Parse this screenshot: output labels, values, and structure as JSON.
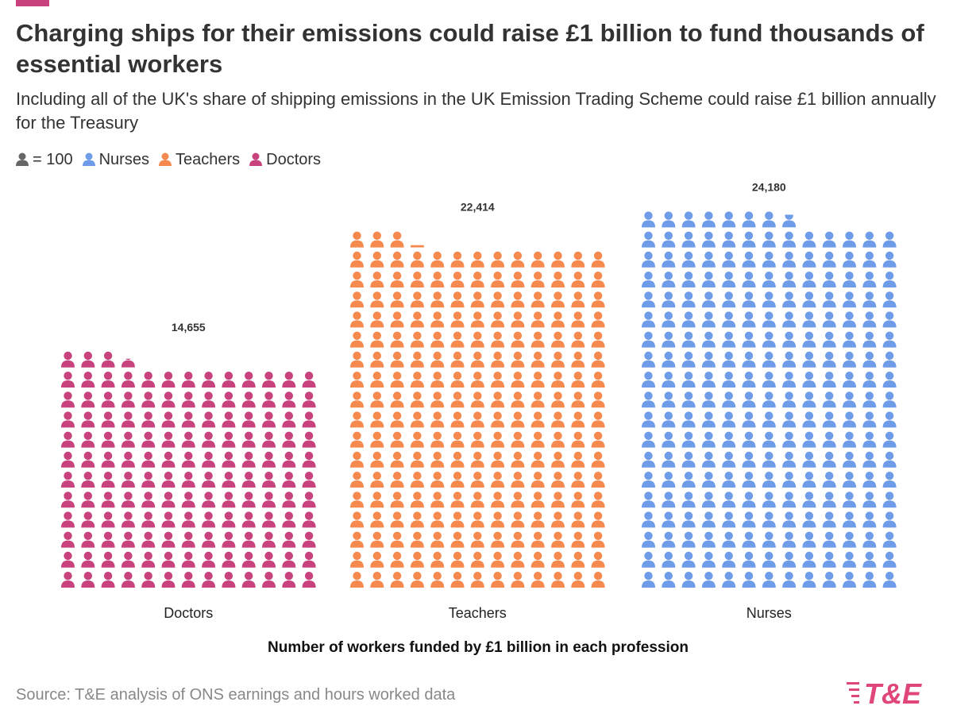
{
  "header": {
    "title": "Charging ships for their emissions could raise £1 billion to fund thousands of essential workers",
    "subtitle": "Including all of the UK's share of shipping emissions in the UK Emission Trading Scheme could raise £1 billion annually for the Treasury"
  },
  "legend": {
    "unit_label": "= 100",
    "items": [
      {
        "label": "Nurses",
        "color": "#6f9ce8",
        "icon": "person-icon"
      },
      {
        "label": "Teachers",
        "color": "#f5894e",
        "icon": "person-icon"
      },
      {
        "label": "Doctors",
        "color": "#c8427d",
        "icon": "person-icon"
      }
    ],
    "unit_color": "#666666"
  },
  "chart_data": {
    "type": "bar",
    "chart_style": "isotype pictogram, one icon = 100 workers",
    "categories": [
      "Doctors",
      "Teachers",
      "Nurses"
    ],
    "values": [
      14655,
      22414,
      24180
    ],
    "value_labels": [
      "14,655",
      "22,414",
      "24,180"
    ],
    "colors": [
      "#c8427d",
      "#f5894e",
      "#6f9ce8"
    ],
    "units_per_icon": 100,
    "xlabel": "Number of workers funded by £1 billion in each profession",
    "ylabel": "",
    "grid": false
  },
  "footer": {
    "source": "Source: T&E analysis of ONS earnings and hours worked data",
    "logo_text": "T&E",
    "logo_color": "#e0457b"
  }
}
